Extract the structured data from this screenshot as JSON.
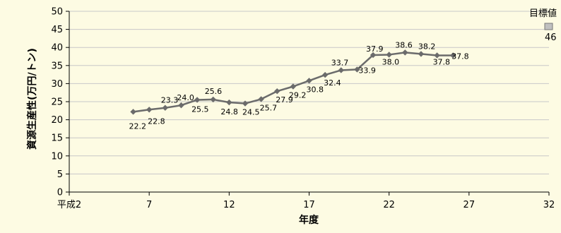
{
  "chart_data": {
    "type": "line",
    "xlabel": "年度",
    "ylabel": "資源生産性(万円/トン)",
    "xlim": [
      2,
      32
    ],
    "ylim": [
      0,
      50
    ],
    "y_ticks": [
      0,
      5,
      10,
      15,
      20,
      25,
      30,
      35,
      40,
      45,
      50
    ],
    "x_ticks": [
      {
        "value": 2,
        "label": "平成2"
      },
      {
        "value": 7,
        "label": "7"
      },
      {
        "value": 12,
        "label": "12"
      },
      {
        "value": 17,
        "label": "17"
      },
      {
        "value": 22,
        "label": "22"
      },
      {
        "value": 27,
        "label": "27"
      },
      {
        "value": 32,
        "label": "32"
      }
    ],
    "grid": true,
    "series": [
      {
        "color": "#6b6b6b",
        "marker": "diamond",
        "x": [
          6,
          7,
          8,
          9,
          10,
          11,
          12,
          13,
          14,
          15,
          16,
          17,
          18,
          19,
          20,
          21,
          22,
          23,
          24,
          25,
          26
        ],
        "values": [
          22.2,
          22.8,
          23.3,
          24.0,
          25.5,
          25.6,
          24.8,
          24.5,
          25.7,
          27.9,
          29.2,
          30.8,
          32.4,
          33.7,
          33.9,
          37.9,
          38.0,
          38.6,
          38.2,
          37.8,
          37.8
        ],
        "labels": [
          "22.2",
          "22.8",
          "23.3",
          "24.0",
          "25.5",
          "25.6",
          "24.8",
          "24.5",
          "25.7",
          "27.9",
          "29.2",
          "30.8",
          "32.4",
          "33.7",
          "33.9",
          "37.9",
          "38.0",
          "38.6",
          "38.2",
          "37.8",
          "37.8"
        ]
      }
    ],
    "legend": {
      "position": "top-right",
      "label": "目標値",
      "value_label": "46",
      "swatch_color": "#c0c0c0"
    }
  }
}
